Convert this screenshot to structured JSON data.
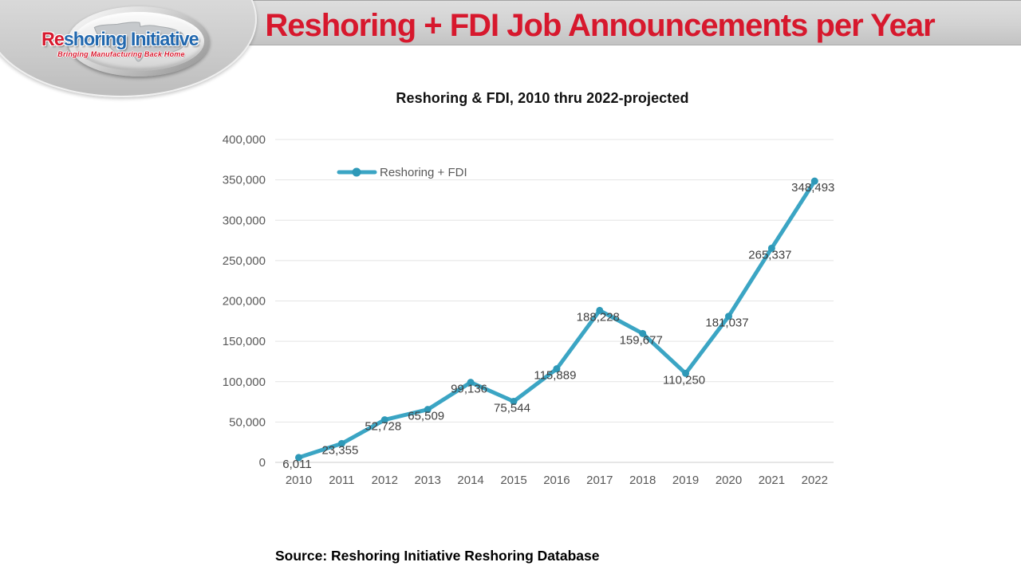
{
  "header": {
    "title": "Reshoring + FDI Job Announcements per Year",
    "logo": {
      "brand_re": "Re",
      "brand_rest": "shoring Initiative",
      "tagline": "Bringing Manufacturing Back Home"
    }
  },
  "chart_data": {
    "type": "line",
    "title": "Reshoring & FDI, 2010 thru 2022-projected",
    "categories": [
      "2010",
      "2011",
      "2012",
      "2013",
      "2014",
      "2015",
      "2016",
      "2017",
      "2018",
      "2019",
      "2020",
      "2021",
      "2022"
    ],
    "series": [
      {
        "name": "Reshoring + FDI",
        "values": [
          6011,
          23355,
          52728,
          65509,
          99136,
          75544,
          115889,
          188228,
          159677,
          110250,
          181037,
          265337,
          348493
        ]
      }
    ],
    "ylim": [
      0,
      400000
    ],
    "y_tick_step": 50000,
    "grid": "horizontal",
    "data_labels": true,
    "legend_position": "inside-top-left",
    "colors": {
      "line": "#3BA5C4",
      "marker": "#2E99B8",
      "gridline": "#e4e4e4",
      "zero_line": "#cccccc",
      "tick_label": "#595959",
      "data_label": "#404040",
      "legend_text": "#595959"
    }
  },
  "footer": {
    "source": "Source: Reshoring Initiative Reshoring Database"
  },
  "theme": {
    "header_red": "#d7182d",
    "logo_blue": "#2268ae"
  }
}
